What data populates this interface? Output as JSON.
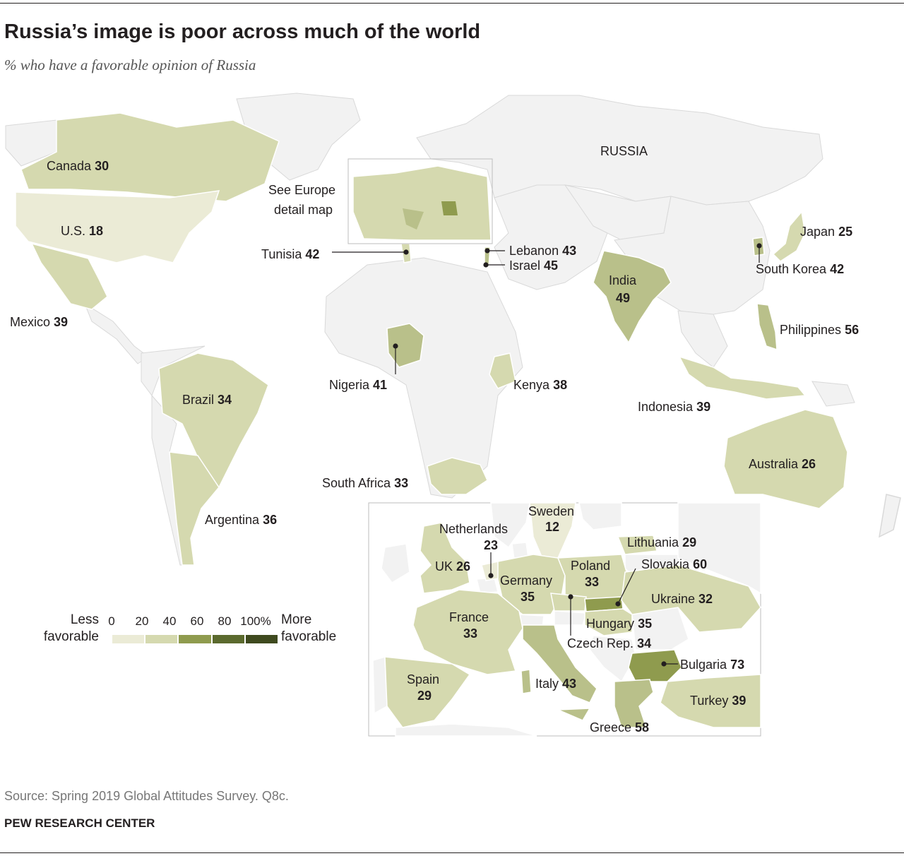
{
  "title": "Russia’s image is poor across much of the world",
  "subtitle": "% who have a favorable opinion of Russia",
  "source": "Source: Spring 2019 Global Attitudes Survey. Q8c.",
  "credit": "PEW RESEARCH CENTER",
  "colors": {
    "none": "#f2f2f2",
    "border": "#ffffff",
    "bin_0_20": "#ebebd6",
    "bin_20_40": "#d5d9af",
    "bin_40_60": "#b9c08a",
    "bin_60_80": "#8f9b4e",
    "bin_80_100": "#3f4a1f"
  },
  "map_labels": {
    "russia": "RUSSIA",
    "see_europe_1": "See Europe",
    "see_europe_2": "detail map"
  },
  "legend": {
    "less_1": "Less",
    "less_2": "favorable",
    "more_1": "More",
    "more_2": "favorable",
    "ticks": [
      "0",
      "20",
      "40",
      "60",
      "80",
      "100%"
    ]
  },
  "chart_data": {
    "type": "choropleth",
    "title": "Russia’s image is poor across much of the world",
    "subtitle": "% who have a favorable opinion of Russia",
    "bins": [
      0,
      20,
      40,
      60,
      80,
      100
    ],
    "world": [
      {
        "country": "Canada",
        "value": "30"
      },
      {
        "country": "U.S.",
        "value": "18"
      },
      {
        "country": "Mexico",
        "value": "39"
      },
      {
        "country": "Brazil",
        "value": "34"
      },
      {
        "country": "Argentina",
        "value": "36"
      },
      {
        "country": "Tunisia",
        "value": "42"
      },
      {
        "country": "Lebanon",
        "value": "43"
      },
      {
        "country": "Israel",
        "value": "45"
      },
      {
        "country": "Nigeria",
        "value": "41"
      },
      {
        "country": "Kenya",
        "value": "38"
      },
      {
        "country": "South Africa",
        "value": "33"
      },
      {
        "country": "India",
        "value": "49"
      },
      {
        "country": "Japan",
        "value": "25"
      },
      {
        "country": "South Korea",
        "value": "42"
      },
      {
        "country": "Philippines",
        "value": "56"
      },
      {
        "country": "Indonesia",
        "value": "39"
      },
      {
        "country": "Australia",
        "value": "26"
      }
    ],
    "europe": [
      {
        "country": "Sweden",
        "value": "12"
      },
      {
        "country": "Netherlands",
        "value": "23"
      },
      {
        "country": "Lithuania",
        "value": "29"
      },
      {
        "country": "UK",
        "value": "26"
      },
      {
        "country": "Poland",
        "value": "33"
      },
      {
        "country": "Slovakia",
        "value": "60"
      },
      {
        "country": "Germany",
        "value": "35"
      },
      {
        "country": "Ukraine",
        "value": "32"
      },
      {
        "country": "France",
        "value": "33"
      },
      {
        "country": "Hungary",
        "value": "35"
      },
      {
        "country": "Czech Rep.",
        "value": "34"
      },
      {
        "country": "Bulgaria",
        "value": "73"
      },
      {
        "country": "Spain",
        "value": "29"
      },
      {
        "country": "Italy",
        "value": "43"
      },
      {
        "country": "Turkey",
        "value": "39"
      },
      {
        "country": "Greece",
        "value": "58"
      }
    ]
  }
}
